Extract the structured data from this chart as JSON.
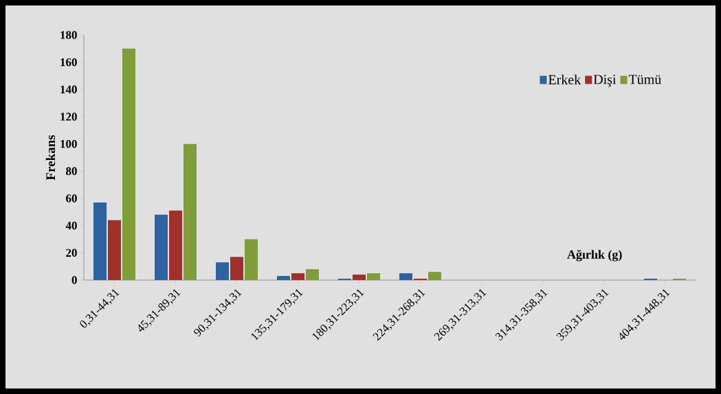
{
  "chart_data": {
    "type": "bar",
    "xlabel": "Ağırlık (g)",
    "ylabel": "Frekans",
    "categories": [
      "0,31-44,31",
      "45,31-89,31",
      "90,31-134,31",
      "135,31-179,31",
      "180,31-223,31",
      "224,31-268,31",
      "269,31-313,31",
      "314,31-358,31",
      "359,31-403,31",
      "404,31-448,31"
    ],
    "series": [
      {
        "name": "Erkek",
        "color": "#2e62a0",
        "values": [
          57,
          48,
          13,
          3,
          1,
          5,
          0,
          0,
          0,
          1
        ]
      },
      {
        "name": "Dişi",
        "color": "#a0302c",
        "values": [
          44,
          51,
          17,
          5,
          4,
          1,
          0,
          0,
          0,
          0
        ]
      },
      {
        "name": "Tümü",
        "color": "#7f9e3a",
        "values": [
          170,
          100,
          30,
          8,
          5,
          6,
          0,
          0,
          0,
          1
        ]
      }
    ],
    "ylim": [
      0,
      180
    ],
    "yticks": [
      0,
      20,
      40,
      60,
      80,
      100,
      120,
      140,
      160,
      180
    ],
    "grid": false,
    "legend": "top right"
  }
}
